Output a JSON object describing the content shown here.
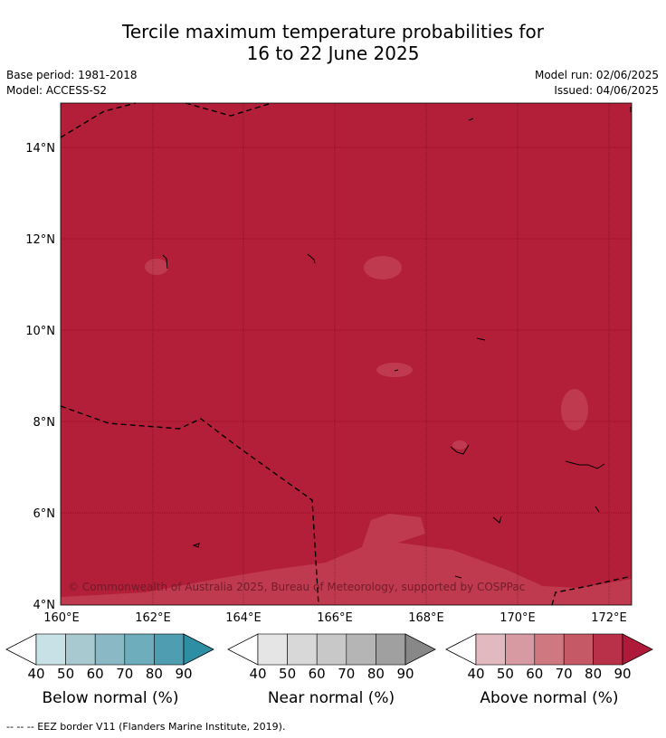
{
  "title": {
    "line1": "Tercile maximum temperature probabilities for",
    "line2": "16 to 22 June 2025"
  },
  "meta": {
    "base_period": "Base period: 1981-2018",
    "model": "Model: ACCESS-S2",
    "model_run": "Model run: 02/06/2025",
    "issued": "Issued: 04/06/2025"
  },
  "map": {
    "lon_labels": [
      "160°E",
      "162°E",
      "164°E",
      "166°E",
      "168°E",
      "170°E",
      "172°E"
    ],
    "lat_labels": [
      "14°N",
      "12°N",
      "10°N",
      "8°N",
      "6°N",
      "4°N"
    ],
    "fill_color": "#b31e38",
    "patch_color": "#bf3a4e",
    "copyright": "© Commonwealth of Australia 2025, Bureau of Meteorology, supported by COSPPac"
  },
  "legends": [
    {
      "title": "Below normal (%)",
      "ticks": [
        "40",
        "50",
        "60",
        "70",
        "80",
        "90"
      ],
      "colors": [
        "#c7e1e6",
        "#a8c9cf",
        "#8ab8c4",
        "#6eadbc",
        "#4e9db0",
        "#2e8ea3"
      ]
    },
    {
      "title": "Near normal (%)",
      "ticks": [
        "40",
        "50",
        "60",
        "70",
        "80",
        "90"
      ],
      "colors": [
        "#e5e5e5",
        "#d8d8d8",
        "#c8c8c8",
        "#b5b5b5",
        "#a0a0a0",
        "#888888"
      ]
    },
    {
      "title": "Above normal (%)",
      "ticks": [
        "40",
        "50",
        "60",
        "70",
        "80",
        "90"
      ],
      "colors": [
        "#e2b9bf",
        "#d79aa2",
        "#cf7880",
        "#c55a66",
        "#b93049",
        "#b01a3a"
      ]
    }
  ],
  "footnote": "--  --  -- EEZ border V11 (Flanders Marine Institute, 2019)."
}
